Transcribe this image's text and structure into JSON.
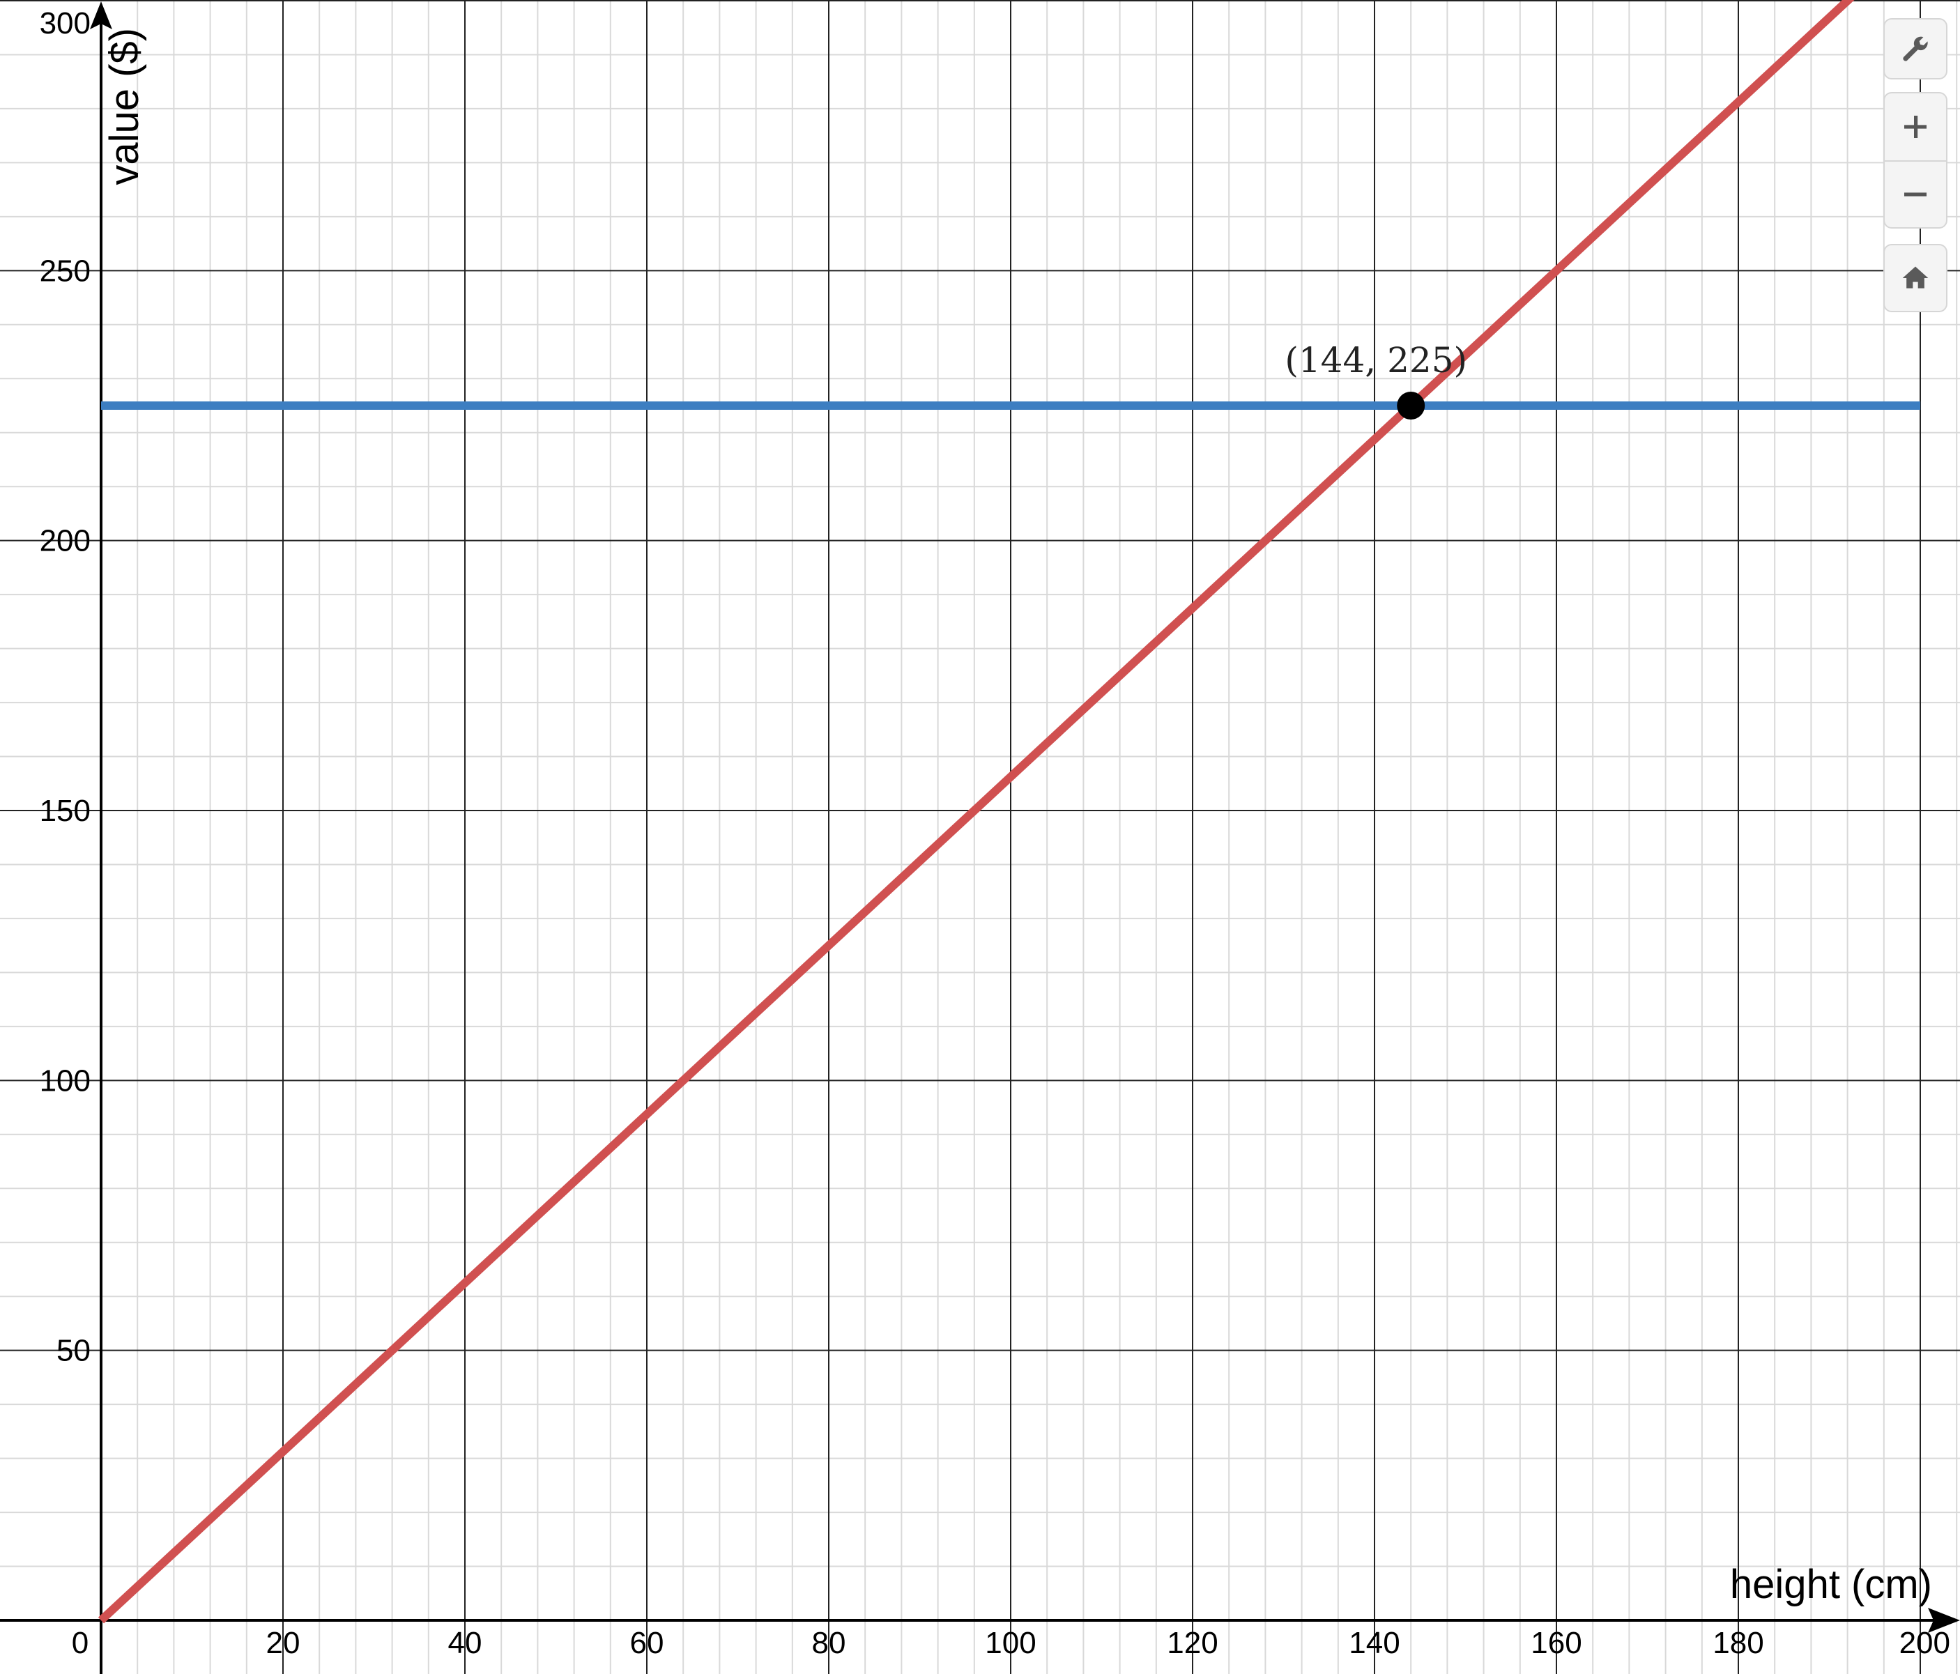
{
  "chart_data": {
    "type": "line",
    "xlabel": "height (cm)",
    "ylabel": "value ($)",
    "xlim": [
      0,
      200
    ],
    "ylim": [
      0,
      300
    ],
    "x_ticks": [
      0,
      20,
      40,
      60,
      80,
      100,
      120,
      140,
      160,
      180,
      200
    ],
    "y_ticks": [
      50,
      100,
      150,
      200,
      250,
      300
    ],
    "x_tick_labels": [
      "0",
      "20",
      "40",
      "60",
      "80",
      "100",
      "120",
      "140",
      "160",
      "180",
      "200"
    ],
    "y_tick_labels": [
      "50",
      "100",
      "150",
      "200",
      "250",
      "300"
    ],
    "grid": true,
    "series": [
      {
        "color": "#3d7ec1",
        "points": [
          [
            0,
            225
          ],
          [
            200,
            225
          ]
        ]
      },
      {
        "color": "#d05050",
        "points": [
          [
            0,
            0
          ],
          [
            200,
            312.5
          ]
        ]
      }
    ],
    "points": [
      {
        "x": 144,
        "y": 225,
        "label": "(144, 225)",
        "color": "#000000"
      }
    ]
  },
  "controls": {
    "wrench": "wrench-icon",
    "zoom_in": "plus-icon",
    "zoom_out": "minus-icon",
    "home": "home-icon"
  }
}
